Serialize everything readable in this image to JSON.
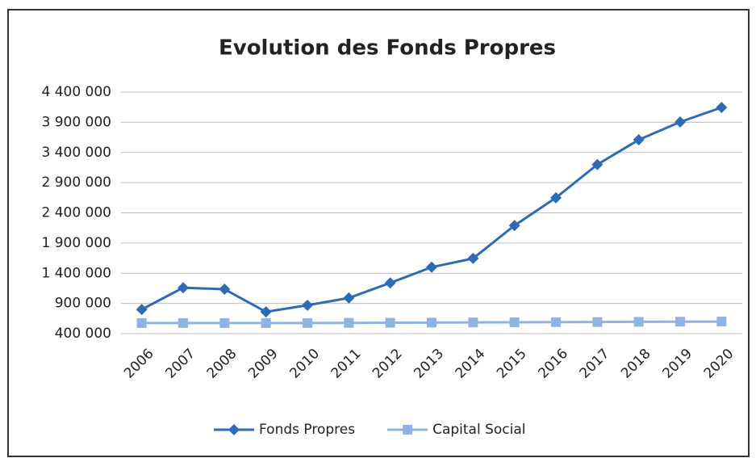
{
  "chart_data": {
    "type": "line",
    "title": "Evolution des Fonds Propres",
    "categories": [
      "2006",
      "2007",
      "2008",
      "2009",
      "2010",
      "2011",
      "2012",
      "2013",
      "2014",
      "2015",
      "2016",
      "2017",
      "2018",
      "2019",
      "2020"
    ],
    "series": [
      {
        "name": "Fonds Propres",
        "color": "#2e6bb5",
        "marker": "diamond",
        "values": [
          800000,
          1160000,
          1135000,
          760000,
          870000,
          990000,
          1240000,
          1500000,
          1645000,
          2190000,
          2650000,
          3200000,
          3610000,
          3905000,
          4145000
        ]
      },
      {
        "name": "Capital Social",
        "color": "#8fb4e3",
        "marker": "square",
        "values": [
          575000,
          575000,
          575000,
          575000,
          575000,
          578000,
          580000,
          582000,
          585000,
          588000,
          590000,
          592000,
          595000,
          598000,
          600000
        ]
      }
    ],
    "ylim": [
      400000,
      4400000
    ],
    "yticks": [
      {
        "value": 400000,
        "label": "400 000"
      },
      {
        "value": 900000,
        "label": "900 000"
      },
      {
        "value": 1400000,
        "label": "1 400 000"
      },
      {
        "value": 1900000,
        "label": "1 900 000"
      },
      {
        "value": 2400000,
        "label": "2 400 000"
      },
      {
        "value": 2900000,
        "label": "2 900 000"
      },
      {
        "value": 3400000,
        "label": "3 400 000"
      },
      {
        "value": 3900000,
        "label": "3 900 000"
      },
      {
        "value": 4400000,
        "label": "4 400 000"
      }
    ],
    "grid": true,
    "legend": "bottom"
  }
}
